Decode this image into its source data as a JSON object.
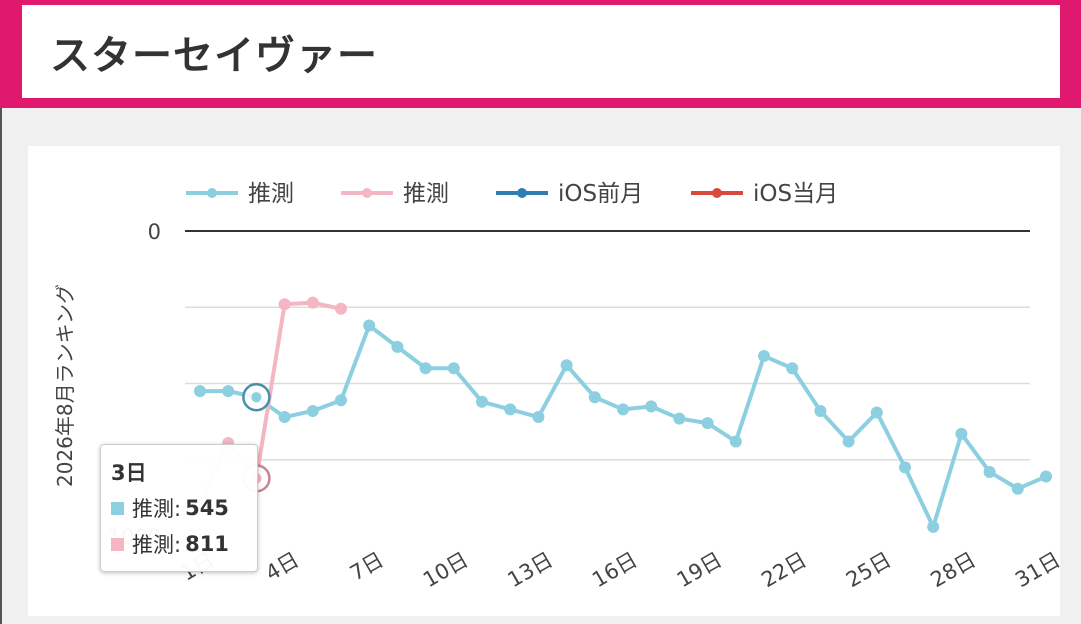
{
  "header": {
    "title": "スターセイヴァー"
  },
  "chart_data": {
    "type": "line",
    "ylabel": "2026年8月ランキング",
    "ylim": [
      0,
      1000
    ],
    "y_inverted": true,
    "y_ticks": [
      0,
      1000
    ],
    "x_range": [
      1,
      31
    ],
    "x_ticks": [
      "1日",
      "4日",
      "7日",
      "10日",
      "13日",
      "16日",
      "19日",
      "22日",
      "25日",
      "28日",
      "31日"
    ],
    "grid": true,
    "legend": {
      "position": "top"
    },
    "series": [
      {
        "name": "推測",
        "color": "#8ccfe0",
        "x": [
          1,
          2,
          3,
          4,
          5,
          6,
          7,
          8,
          9,
          10,
          11,
          12,
          13,
          14,
          15,
          16,
          17,
          18,
          19,
          20,
          21,
          22,
          23,
          24,
          25,
          26,
          27,
          28,
          29,
          30,
          31
        ],
        "y": [
          525,
          525,
          545,
          610,
          590,
          555,
          310,
          380,
          450,
          450,
          560,
          585,
          610,
          440,
          545,
          585,
          575,
          615,
          630,
          690,
          410,
          450,
          590,
          690,
          595,
          775,
          970,
          665,
          790,
          845,
          805
        ]
      },
      {
        "name": "推測",
        "color": "#f4b6c2",
        "x": [
          1,
          2,
          3,
          4,
          5,
          6
        ],
        "y": [
          895,
          695,
          811,
          240,
          235,
          255
        ]
      },
      {
        "name": "iOS前月",
        "color": "#2e7db5",
        "x": [],
        "y": []
      },
      {
        "name": "iOS当月",
        "color": "#d64b3c",
        "x": [],
        "y": []
      }
    ],
    "tooltip": {
      "title": "3日",
      "rows": [
        {
          "label": "推測:",
          "value": "545",
          "color": "#8ccfe0"
        },
        {
          "label": "推測:",
          "value": "811",
          "color": "#f4b6c2"
        }
      ]
    }
  }
}
